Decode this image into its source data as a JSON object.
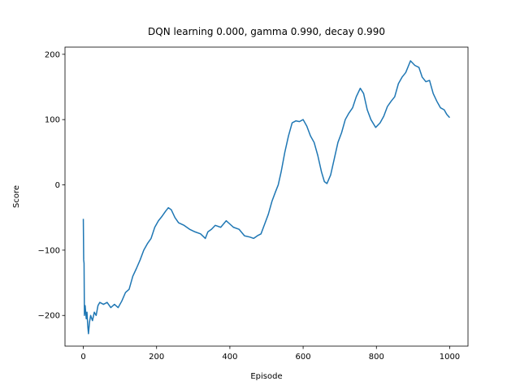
{
  "chart_data": {
    "type": "line",
    "title": "DQN learning 0.000, gamma 0.990, decay 0.990",
    "xlabel": "Episode",
    "ylabel": "Score",
    "xlim": [
      -50,
      1050
    ],
    "ylim": [
      -247,
      211
    ],
    "xticks": [
      0,
      200,
      400,
      600,
      800,
      1000
    ],
    "yticks": [
      {
        "value": -200,
        "label": "−200"
      },
      {
        "value": -100,
        "label": "−100"
      },
      0,
      100,
      200
    ],
    "series": [
      {
        "name": "Score",
        "color": "#1f77b4",
        "x": [
          0,
          1,
          2,
          3,
          5,
          8,
          10,
          12,
          14,
          17,
          20,
          25,
          30,
          35,
          40,
          45,
          55,
          65,
          75,
          85,
          95,
          105,
          115,
          125,
          135,
          145,
          155,
          165,
          175,
          185,
          195,
          205,
          215,
          225,
          232,
          240,
          250,
          260,
          275,
          290,
          305,
          320,
          333,
          340,
          350,
          360,
          375,
          390,
          400,
          410,
          425,
          440,
          455,
          465,
          475,
          485,
          495,
          505,
          515,
          525,
          532,
          540,
          550,
          560,
          570,
          580,
          590,
          600,
          610,
          620,
          630,
          640,
          650,
          658,
          665,
          675,
          685,
          695,
          705,
          715,
          725,
          735,
          745,
          756,
          765,
          775,
          785,
          798,
          810,
          820,
          830,
          840,
          850,
          860,
          870,
          880,
          893,
          905,
          916,
          925,
          935,
          945,
          955,
          965,
          975,
          985,
          992,
          1000
        ],
        "values": [
          -52,
          -115,
          -120,
          -200,
          -185,
          -205,
          -195,
          -215,
          -228,
          -210,
          -200,
          -208,
          -195,
          -200,
          -185,
          -180,
          -183,
          -180,
          -188,
          -183,
          -188,
          -178,
          -165,
          -160,
          -140,
          -128,
          -115,
          -100,
          -90,
          -82,
          -65,
          -55,
          -48,
          -40,
          -35,
          -38,
          -50,
          -58,
          -62,
          -68,
          -72,
          -75,
          -82,
          -72,
          -68,
          -62,
          -65,
          -55,
          -60,
          -65,
          -68,
          -78,
          -80,
          -82,
          -78,
          -75,
          -60,
          -45,
          -25,
          -10,
          0,
          20,
          50,
          75,
          95,
          98,
          97,
          100,
          90,
          75,
          65,
          45,
          20,
          5,
          2,
          15,
          40,
          65,
          80,
          100,
          110,
          118,
          135,
          148,
          140,
          115,
          100,
          88,
          95,
          105,
          120,
          128,
          135,
          155,
          165,
          172,
          190,
          183,
          180,
          165,
          158,
          160,
          140,
          128,
          118,
          115,
          108,
          103
        ]
      }
    ]
  }
}
